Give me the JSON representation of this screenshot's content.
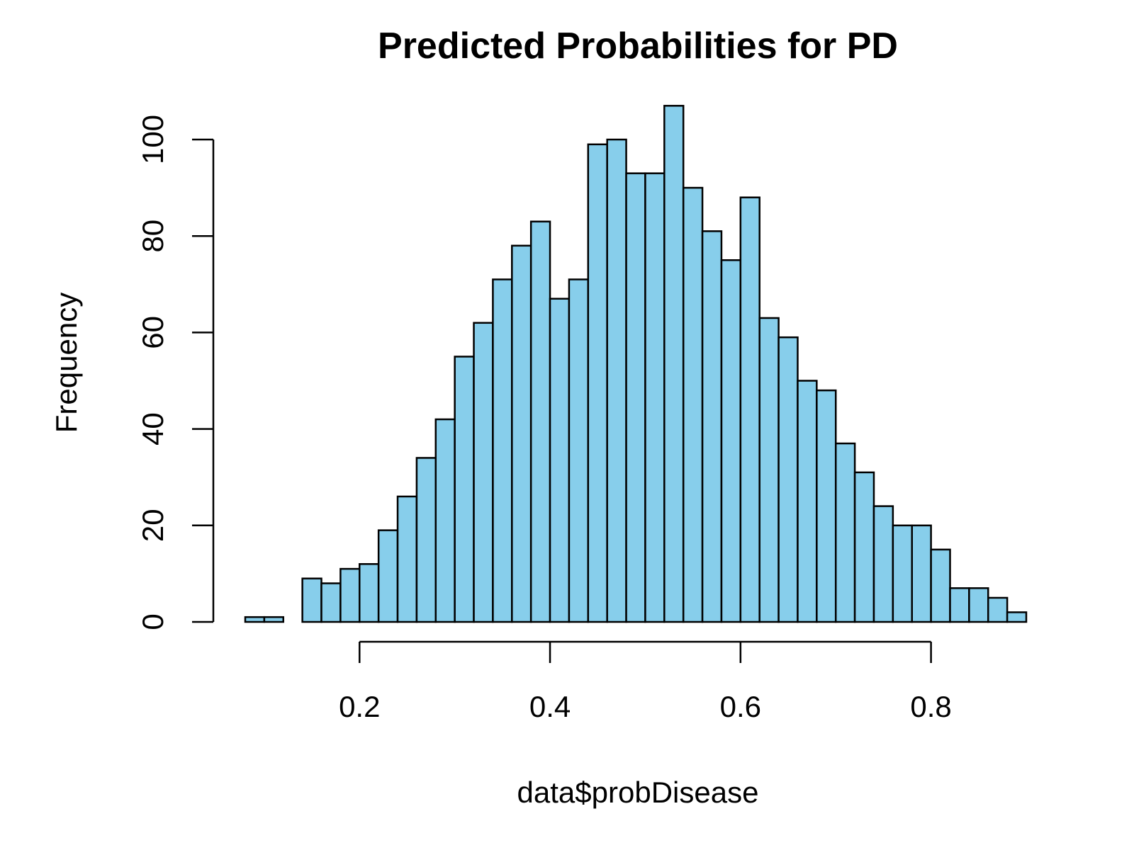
{
  "chart_data": {
    "type": "bar",
    "title": "Predicted Probabilities for PD",
    "xlabel": "data$probDisease",
    "ylabel": "Frequency",
    "bar_color": "#87CEEB",
    "border_color": "#000000",
    "bin_width": 0.02,
    "x_start": 0.08,
    "values": [
      1,
      1,
      0,
      9,
      8,
      11,
      12,
      19,
      26,
      34,
      42,
      55,
      62,
      71,
      78,
      83,
      67,
      71,
      99,
      100,
      93,
      93,
      107,
      90,
      81,
      75,
      88,
      63,
      59,
      50,
      48,
      37,
      31,
      24,
      20,
      20,
      15,
      7,
      7,
      5,
      2
    ],
    "xlim": [
      0.08,
      0.9
    ],
    "ylim": [
      0,
      100
    ],
    "x_ticks": [
      "0.2",
      "0.4",
      "0.6",
      "0.8"
    ],
    "y_ticks": [
      "0",
      "20",
      "40",
      "60",
      "80",
      "100"
    ],
    "grid": false,
    "legend": "none"
  }
}
